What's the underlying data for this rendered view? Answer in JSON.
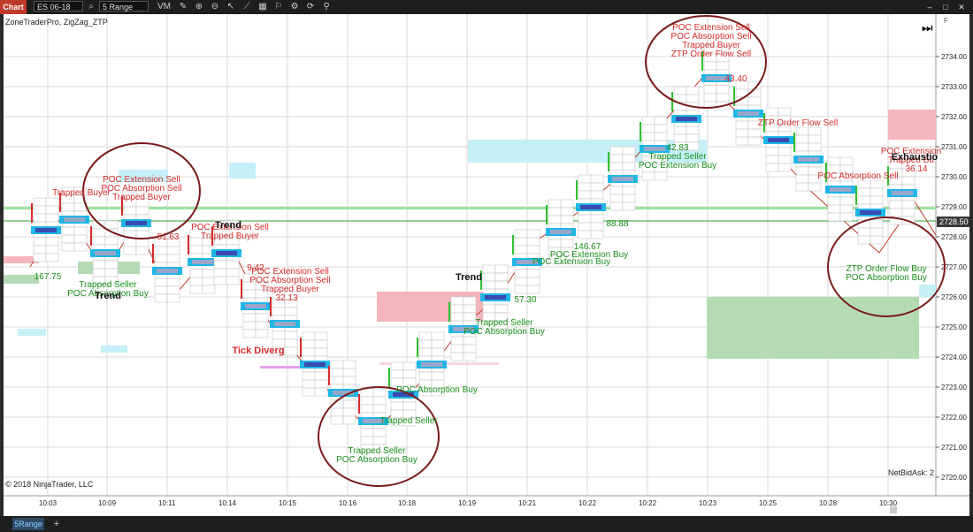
{
  "titlebar": {
    "chart_tab": "Chart",
    "instrument": "ES 06-18",
    "bar_type": "5 Range V...",
    "vm_label": "VM"
  },
  "chart": {
    "indicator_label": "ZoneTraderPro, ZigZag_ZTP",
    "copyright": "© 2018 NinjaTrader, LLC",
    "netbidask": "NetBidAsk: 2",
    "current_price": "2728.50",
    "price_labels": [
      "2734.00",
      "2733.00",
      "2732.00",
      "2731.00",
      "2730.00",
      "2729.00",
      "2728.00",
      "2727.00",
      "2726.00",
      "2725.00",
      "2724.00",
      "2723.00",
      "2722.00",
      "2721.00",
      "2720.00"
    ],
    "time_labels": [
      "10:03",
      "10:09",
      "10:11",
      "10:14",
      "10:15",
      "10:16",
      "10:18",
      "10:19",
      "10:21",
      "10:22",
      "10:22",
      "10:23",
      "10:25",
      "10:28",
      "10:30"
    ],
    "annotations_red": [
      {
        "id": "a1",
        "lines": [
          "POC Extension Sell",
          "POC Absorption Sell",
          "Trapped Buyer"
        ]
      },
      {
        "id": "a2",
        "lines": [
          "Trapped Buyer"
        ]
      },
      {
        "id": "a3",
        "lines": [
          "POC Extension Sell",
          "Trapped Buyer"
        ]
      },
      {
        "id": "a4",
        "lines": [
          "POC Extension Sell",
          "POC Absorption Sell",
          "Trapped Buyer"
        ]
      },
      {
        "id": "a5",
        "lines": [
          "POC Extension Sell",
          "POC Absorption Sell",
          "Trapped Buyer",
          "ZTP Order Flow Sell"
        ]
      },
      {
        "id": "a6",
        "lines": [
          "ZTP Order Flow Sell"
        ]
      },
      {
        "id": "a7",
        "lines": [
          "POC Absorption Sell"
        ]
      },
      {
        "id": "a8",
        "lines": [
          "POC Extension",
          "Trapped Bu"
        ]
      }
    ],
    "annotations_green": [
      {
        "id": "g1",
        "lines": [
          "Trapped Seller",
          "POC Absorption Buy"
        ]
      },
      {
        "id": "g2",
        "lines": [
          "Trapped Seller"
        ]
      },
      {
        "id": "g3",
        "lines": [
          "Trapped Seller",
          "POC Absorption Buy"
        ]
      },
      {
        "id": "g4",
        "lines": [
          "POC Absorption Buy"
        ]
      },
      {
        "id": "g5",
        "lines": [
          "Trapped Seller",
          "POC Absorption Buy"
        ]
      },
      {
        "id": "g6",
        "lines": [
          "POC Extension Buy"
        ]
      },
      {
        "id": "g7",
        "lines": [
          "POC Extension Buy"
        ]
      },
      {
        "id": "g8",
        "lines": [
          "Trapped Seller",
          "POC Extension Buy"
        ]
      },
      {
        "id": "g9",
        "lines": [
          "ZTP Order Flow Buy",
          "POC Absorption Buy"
        ]
      }
    ],
    "numbers": {
      "n1": "167.75",
      "n2": "51.63",
      "n3": "9.42",
      "n4": "32.13",
      "n5": "57.30",
      "n6": "146.67",
      "n7": "88.88",
      "n8": "42.83",
      "n9": "43.40",
      "n10": "36.14"
    },
    "labels_black": {
      "trend1": "Trend",
      "trend2": "Trend",
      "trend3": "Trend",
      "exhaustion": "Exhaustio"
    },
    "tick_diverg": "Tick Diverg"
  },
  "statusbar": {
    "tab_label": "5Range",
    "add_label": "+"
  }
}
